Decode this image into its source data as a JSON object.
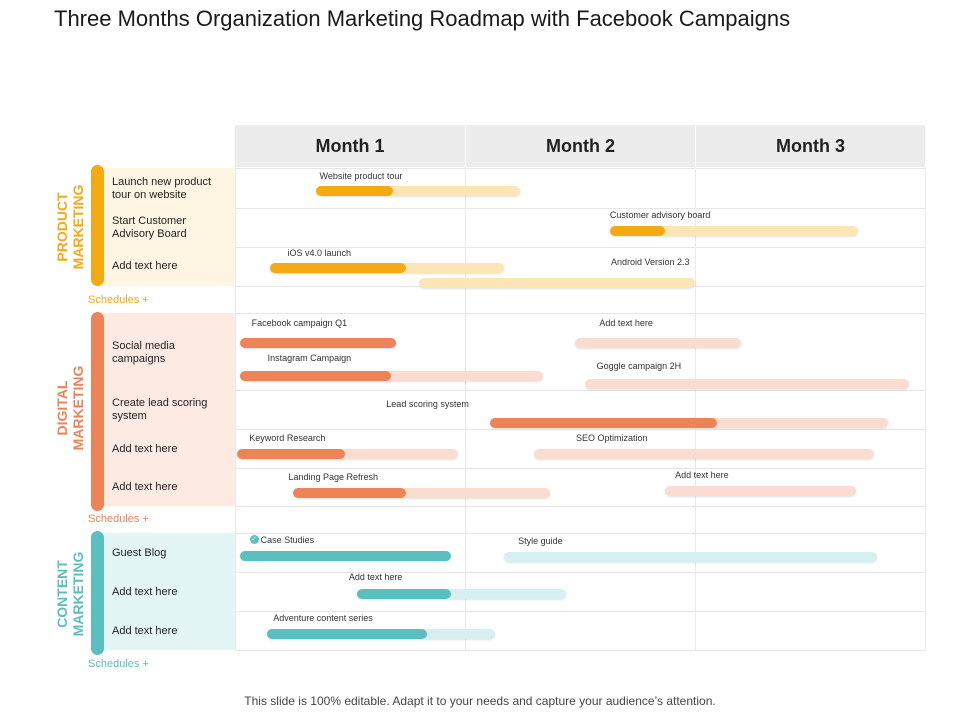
{
  "title": "Three Months Organization Marketing Roadmap with Facebook Campaigns",
  "footer": "This slide is 100% editable. Adapt it to your needs and capture your audience’s attention.",
  "months": [
    "Month 1",
    "Month 2",
    "Month 3"
  ],
  "colors": {
    "product": "#f5a912",
    "product_light": "#fde6b6",
    "product_bg": "#fff5e3",
    "digital": "#ee8357",
    "digital_light": "#fbdcd0",
    "digital_bg": "#fdeae3",
    "content": "#5bbfc0",
    "content_light": "#d6eff0",
    "content_bg": "#e3f5f5"
  },
  "sections": [
    {
      "id": "product",
      "label_line1": "PRODUCT",
      "label_line2": "MARKETING",
      "schedules": "Schedules +",
      "rows": [
        "Launch new product tour on website",
        "Start Customer Advisory Board",
        "Add text here"
      ]
    },
    {
      "id": "digital",
      "label_line1": "DIGITAL",
      "label_line2": "MARKETING",
      "schedules": "Schedules +",
      "rows": [
        "Social media campaigns",
        "Create lead scoring system",
        "Add text here",
        "Add text here"
      ]
    },
    {
      "id": "content",
      "label_line1": "CONTENT",
      "label_line2": "MARKETING",
      "schedules": "Schedules +",
      "rows": [
        "Guest Blog",
        "Add text here",
        "Add text here"
      ]
    }
  ],
  "tasks": [
    {
      "label": "Website product tour",
      "section": "product",
      "start": 0.35,
      "end": 1.24,
      "progress": 0.38
    },
    {
      "label": "Customer advisory board",
      "section": "product",
      "start": 1.63,
      "end": 2.71,
      "progress": 0.22
    },
    {
      "label": "iOS v4.0 launch",
      "section": "product",
      "start": 0.15,
      "end": 1.17,
      "progress": 0.58
    },
    {
      "label": "Android Version 2.3",
      "section": "product",
      "start": 0.8,
      "end": 2.0,
      "progress": 0.0
    },
    {
      "label": "Facebook campaign Q1",
      "section": "digital",
      "start": 0.02,
      "end": 0.7,
      "progress": 1.0
    },
    {
      "label": "Add text here",
      "section": "digital",
      "start": 1.48,
      "end": 2.2,
      "progress": 0.0
    },
    {
      "label": "Instagram Campaign",
      "section": "digital",
      "start": 0.02,
      "end": 1.34,
      "progress": 0.5
    },
    {
      "label": "Goggle campaign 2H",
      "section": "digital",
      "start": 1.52,
      "end": 2.93,
      "progress": 0.0
    },
    {
      "label": "Lead scoring system",
      "section": "digital",
      "start": 1.11,
      "end": 2.84,
      "progress": 0.57
    },
    {
      "label": "Keyword Research",
      "section": "digital",
      "start": 0.01,
      "end": 0.97,
      "progress": 0.49
    },
    {
      "label": "SEO Optimization",
      "section": "digital",
      "start": 1.3,
      "end": 2.78,
      "progress": 0.0
    },
    {
      "label": "Landing Page Refresh",
      "section": "digital",
      "start": 0.25,
      "end": 1.37,
      "progress": 0.44
    },
    {
      "label": "Add text here",
      "section": "digital",
      "start": 1.87,
      "end": 2.7,
      "progress": 0.0
    },
    {
      "label": "Case Studies",
      "section": "content",
      "start": 0.02,
      "end": 0.94,
      "progress": 1.0,
      "icon": "check-icon"
    },
    {
      "label": "Style guide",
      "section": "content",
      "start": 1.17,
      "end": 2.79,
      "progress": 0.0
    },
    {
      "label": "Add text here",
      "section": "content",
      "start": 0.53,
      "end": 1.44,
      "progress": 0.45
    },
    {
      "label": "Adventure content series",
      "section": "content",
      "start": 0.14,
      "end": 1.13,
      "progress": 0.7
    }
  ]
}
